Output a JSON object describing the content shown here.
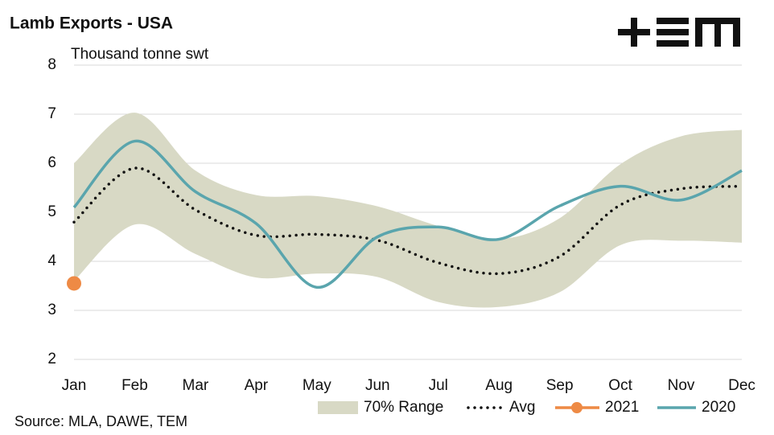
{
  "chart_data": {
    "type": "line",
    "title": "Lamb Exports - USA",
    "subtitle": "Thousand tonne swt",
    "source": "Source: MLA, DAWE, TEM",
    "categories": [
      "Jan",
      "Feb",
      "Mar",
      "Apr",
      "May",
      "Jun",
      "Jul",
      "Aug",
      "Sep",
      "Oct",
      "Nov",
      "Dec"
    ],
    "ylim": [
      2,
      8
    ],
    "yticks": [
      2,
      3,
      4,
      5,
      6,
      7,
      8
    ],
    "grid": true,
    "legend": "bottom",
    "series": [
      {
        "name": "70% Range",
        "color": "#d8d9c5",
        "kind": "band",
        "high": [
          6.0,
          7.03,
          5.85,
          5.35,
          5.33,
          5.12,
          4.72,
          4.45,
          4.88,
          5.98,
          6.55,
          6.68
        ],
        "low": [
          3.6,
          4.75,
          4.15,
          3.67,
          3.75,
          3.68,
          3.17,
          3.07,
          3.37,
          4.33,
          4.42,
          4.38
        ]
      },
      {
        "name": "Avg",
        "color": "#111111",
        "kind": "dotted",
        "values": [
          4.8,
          5.9,
          5.05,
          4.53,
          4.55,
          4.43,
          3.97,
          3.75,
          4.1,
          5.15,
          5.48,
          5.53
        ]
      },
      {
        "name": "2021",
        "color": "#ee8a45",
        "kind": "point",
        "values": [
          3.55,
          null,
          null,
          null,
          null,
          null,
          null,
          null,
          null,
          null,
          null,
          null
        ]
      },
      {
        "name": "2020",
        "color": "#5aa5ad",
        "kind": "solid",
        "values": [
          5.1,
          6.45,
          5.42,
          4.77,
          3.47,
          4.5,
          4.7,
          4.45,
          5.13,
          5.53,
          5.25,
          5.85
        ]
      }
    ]
  }
}
